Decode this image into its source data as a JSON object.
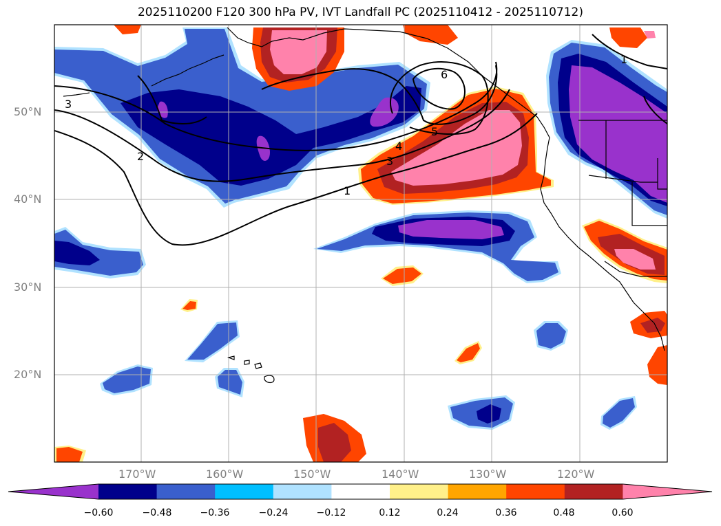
{
  "title": "2025110200 F120 300 hPa PV, IVT Landfall PC (2025110412 - 2025110712)",
  "axes": {
    "lon_labels": [
      "170°W",
      "160°W",
      "150°W",
      "140°W",
      "130°W",
      "120°W"
    ],
    "lat_labels": [
      "50°N",
      "40°N",
      "30°N",
      "20°N"
    ]
  },
  "colorbar": {
    "ticks": [
      "−0.60",
      "−0.48",
      "−0.36",
      "−0.24",
      "−0.12",
      "0.12",
      "0.24",
      "0.36",
      "0.48",
      "0.60"
    ],
    "colors": [
      "#9932cc",
      "#00008b",
      "#3a5fcd",
      "#00bfff",
      "#b0e2ff",
      "#ffffff",
      "#fff08a",
      "#ffa500",
      "#ff4500",
      "#b22222",
      "#ff82ab"
    ]
  },
  "contour_labels": [
    "1",
    "2",
    "3",
    "4",
    "5",
    "6",
    "1",
    "3"
  ],
  "colors": {
    "purple": "#9932cc",
    "navy": "#00008b",
    "royal": "#3a5fcd",
    "sky": "#00bfff",
    "pale_blue": "#b0e2ff",
    "pale_yellow": "#fff08a",
    "orange": "#ffa500",
    "orange_red": "#ff4500",
    "firebrick": "#b22222",
    "pink": "#ff82ab"
  }
}
